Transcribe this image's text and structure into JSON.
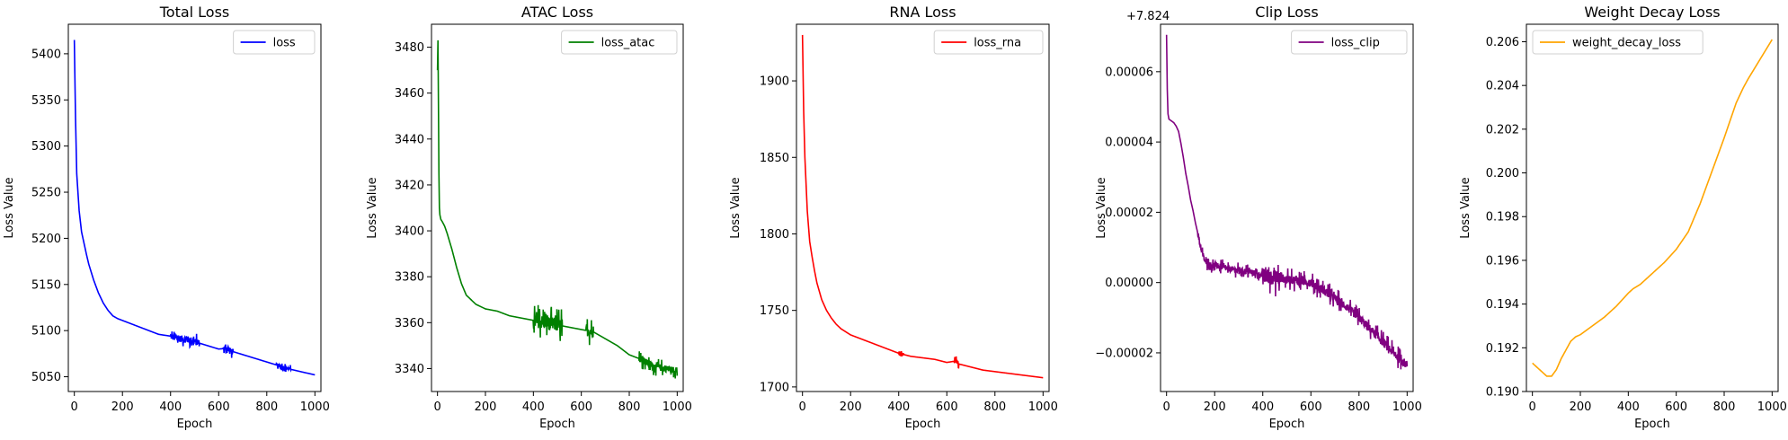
{
  "chart_data": [
    {
      "type": "line",
      "title": "Total Loss",
      "xlabel": "Epoch",
      "ylabel": "Loss Value",
      "xlim": [
        -25,
        1025
      ],
      "ylim": [
        5034,
        5432
      ],
      "xticks": [
        0,
        200,
        400,
        600,
        800,
        1000
      ],
      "yticks": [
        5050,
        5100,
        5150,
        5200,
        5250,
        5300,
        5350,
        5400
      ],
      "ytick_labels": [
        "5050",
        "5100",
        "5150",
        "5200",
        "5250",
        "5300",
        "5350",
        "5400"
      ],
      "legend_loc": "upper-right",
      "series": [
        {
          "name": "loss",
          "color": "#0000ff",
          "x": [
            0,
            2,
            5,
            10,
            20,
            30,
            40,
            50,
            60,
            80,
            100,
            120,
            140,
            160,
            180,
            200,
            250,
            300,
            350,
            400,
            420,
            450,
            480,
            500,
            550,
            600,
            640,
            650,
            700,
            750,
            800,
            850,
            900,
            950,
            1000
          ],
          "y": [
            5415,
            5380,
            5330,
            5270,
            5230,
            5207,
            5195,
            5183,
            5172,
            5155,
            5141,
            5130,
            5122,
            5116,
            5113,
            5111,
            5106,
            5101,
            5096,
            5094,
            5092,
            5091,
            5090,
            5088,
            5084,
            5080,
            5081,
            5078,
            5074,
            5070,
            5066,
            5062,
            5058,
            5055,
            5052
          ]
        }
      ],
      "noise": [
        [
          400,
          520,
          6
        ],
        [
          620,
          660,
          5
        ],
        [
          840,
          900,
          3
        ]
      ]
    },
    {
      "type": "line",
      "title": "ATAC Loss",
      "xlabel": "Epoch",
      "ylabel": "Loss Value",
      "xlim": [
        -25,
        1025
      ],
      "ylim": [
        3330,
        3490
      ],
      "xticks": [
        0,
        200,
        400,
        600,
        800,
        1000
      ],
      "yticks": [
        3340,
        3360,
        3380,
        3400,
        3420,
        3440,
        3460,
        3480
      ],
      "ytick_labels": [
        "3340",
        "3360",
        "3380",
        "3400",
        "3420",
        "3440",
        "3460",
        "3480"
      ],
      "legend_loc": "upper-right",
      "series": [
        {
          "name": "loss_atac",
          "color": "#008000",
          "x": [
            0,
            2,
            4,
            6,
            8,
            10,
            14,
            20,
            30,
            40,
            60,
            80,
            100,
            120,
            140,
            160,
            180,
            200,
            250,
            300,
            350,
            400,
            450,
            500,
            550,
            600,
            650,
            700,
            750,
            800,
            850,
            900,
            950,
            1000
          ],
          "y": [
            3470,
            3483,
            3455,
            3425,
            3410,
            3407,
            3405,
            3404,
            3402,
            3399,
            3392,
            3384,
            3377,
            3372,
            3370,
            3368,
            3367,
            3366,
            3365,
            3363,
            3362,
            3361,
            3360,
            3359,
            3358,
            3357,
            3356,
            3353,
            3350,
            3346,
            3344,
            3341,
            3340,
            3339
          ]
        }
      ],
      "noise": [
        [
          400,
          520,
          5
        ],
        [
          620,
          650,
          4
        ],
        [
          840,
          1000,
          2.5
        ]
      ]
    },
    {
      "type": "line",
      "title": "RNA Loss",
      "xlabel": "Epoch",
      "ylabel": "Loss Value",
      "xlim": [
        -25,
        1025
      ],
      "ylim": [
        1697,
        1937
      ],
      "xticks": [
        0,
        200,
        400,
        600,
        800,
        1000
      ],
      "yticks": [
        1700,
        1750,
        1800,
        1850,
        1900
      ],
      "ytick_labels": [
        "1700",
        "1750",
        "1800",
        "1850",
        "1900"
      ],
      "legend_loc": "upper-right",
      "series": [
        {
          "name": "loss_rna",
          "color": "#ff0000",
          "x": [
            0,
            5,
            10,
            20,
            30,
            40,
            50,
            60,
            80,
            100,
            120,
            140,
            160,
            180,
            200,
            250,
            300,
            350,
            400,
            450,
            500,
            550,
            600,
            640,
            650,
            700,
            750,
            800,
            850,
            900,
            950,
            1000
          ],
          "y": [
            1930,
            1880,
            1850,
            1815,
            1795,
            1785,
            1776,
            1768,
            1757,
            1750,
            1745,
            1741,
            1738,
            1736,
            1734,
            1731,
            1728,
            1725,
            1722,
            1720,
            1719,
            1718,
            1716,
            1717,
            1715,
            1713,
            1711,
            1710,
            1709,
            1708,
            1707,
            1706
          ]
        }
      ],
      "noise": [
        [
          400,
          420,
          1.5
        ],
        [
          630,
          650,
          2
        ]
      ]
    },
    {
      "type": "line",
      "title": "Clip Loss",
      "offset_label": "+7.824",
      "xlabel": "Epoch",
      "ylabel": "Loss Value",
      "xlim": [
        -25,
        1025
      ],
      "ylim": [
        -3.1e-05,
        7.35e-05
      ],
      "xticks": [
        0,
        200,
        400,
        600,
        800,
        1000
      ],
      "yticks": [
        -2e-05,
        0.0,
        2e-05,
        4e-05,
        6e-05
      ],
      "ytick_labels": [
        "−0.00002",
        "0.00000",
        "0.00002",
        "0.00004",
        "0.00006"
      ],
      "legend_loc": "upper-right",
      "series": [
        {
          "name": "loss_clip",
          "color": "#800080",
          "x": [
            0,
            3,
            6,
            10,
            20,
            30,
            40,
            50,
            60,
            70,
            80,
            90,
            100,
            110,
            120,
            130,
            140,
            150,
            160,
            170,
            180,
            200,
            250,
            300,
            350,
            400,
            450,
            500,
            550,
            600,
            650,
            700,
            750,
            800,
            850,
            900,
            950,
            1000
          ],
          "y": [
            7.05e-05,
            5.5e-05,
            4.8e-05,
            4.65e-05,
            4.6e-05,
            4.55e-05,
            4.45e-05,
            4.3e-05,
            3.95e-05,
            3.55e-05,
            3.1e-05,
            2.75e-05,
            2.35e-05,
            2.05e-05,
            1.7e-05,
            1.4e-05,
            1.05e-05,
            8e-06,
            6e-06,
            5.5e-06,
            5e-06,
            5e-06,
            4e-06,
            3.5e-06,
            3e-06,
            2e-06,
            1.5e-06,
            1e-06,
            5e-07,
            0.0,
            -2e-06,
            -4.5e-06,
            -7e-06,
            -1e-05,
            -1.35e-05,
            -1.7e-05,
            -2.05e-05,
            -2.35e-05
          ]
        }
      ],
      "noise": [
        [
          130,
          400,
          1.4e-06
        ],
        [
          400,
          480,
          3.5e-06
        ],
        [
          480,
          1000,
          2e-06
        ]
      ]
    },
    {
      "type": "line",
      "title": "Weight Decay Loss",
      "xlabel": "Epoch",
      "ylabel": "Loss Value",
      "xlim": [
        -25,
        1025
      ],
      "ylim": [
        0.19,
        0.2068
      ],
      "xticks": [
        0,
        200,
        400,
        600,
        800,
        1000
      ],
      "yticks": [
        0.19,
        0.192,
        0.194,
        0.196,
        0.198,
        0.2,
        0.202,
        0.204,
        0.206
      ],
      "ytick_labels": [
        "0.190",
        "0.192",
        "0.194",
        "0.196",
        "0.198",
        "0.200",
        "0.202",
        "0.204",
        "0.206"
      ],
      "legend_loc": "upper-left",
      "series": [
        {
          "name": "weight_decay_loss",
          "color": "#ffa500",
          "x": [
            0,
            20,
            40,
            60,
            80,
            100,
            120,
            140,
            160,
            180,
            200,
            250,
            300,
            350,
            400,
            420,
            450,
            500,
            550,
            600,
            650,
            700,
            750,
            800,
            850,
            880,
            900,
            950,
            1000
          ],
          "y": [
            0.1913,
            0.1911,
            0.1909,
            0.1907,
            0.1907,
            0.191,
            0.1915,
            0.1919,
            0.1923,
            0.1925,
            0.1926,
            0.193,
            0.1934,
            0.1939,
            0.1945,
            0.1947,
            0.1949,
            0.1954,
            0.1959,
            0.1965,
            0.1973,
            0.1986,
            0.2001,
            0.2016,
            0.2032,
            0.2039,
            0.2043,
            0.2052,
            0.2061
          ]
        }
      ],
      "noise": []
    }
  ]
}
